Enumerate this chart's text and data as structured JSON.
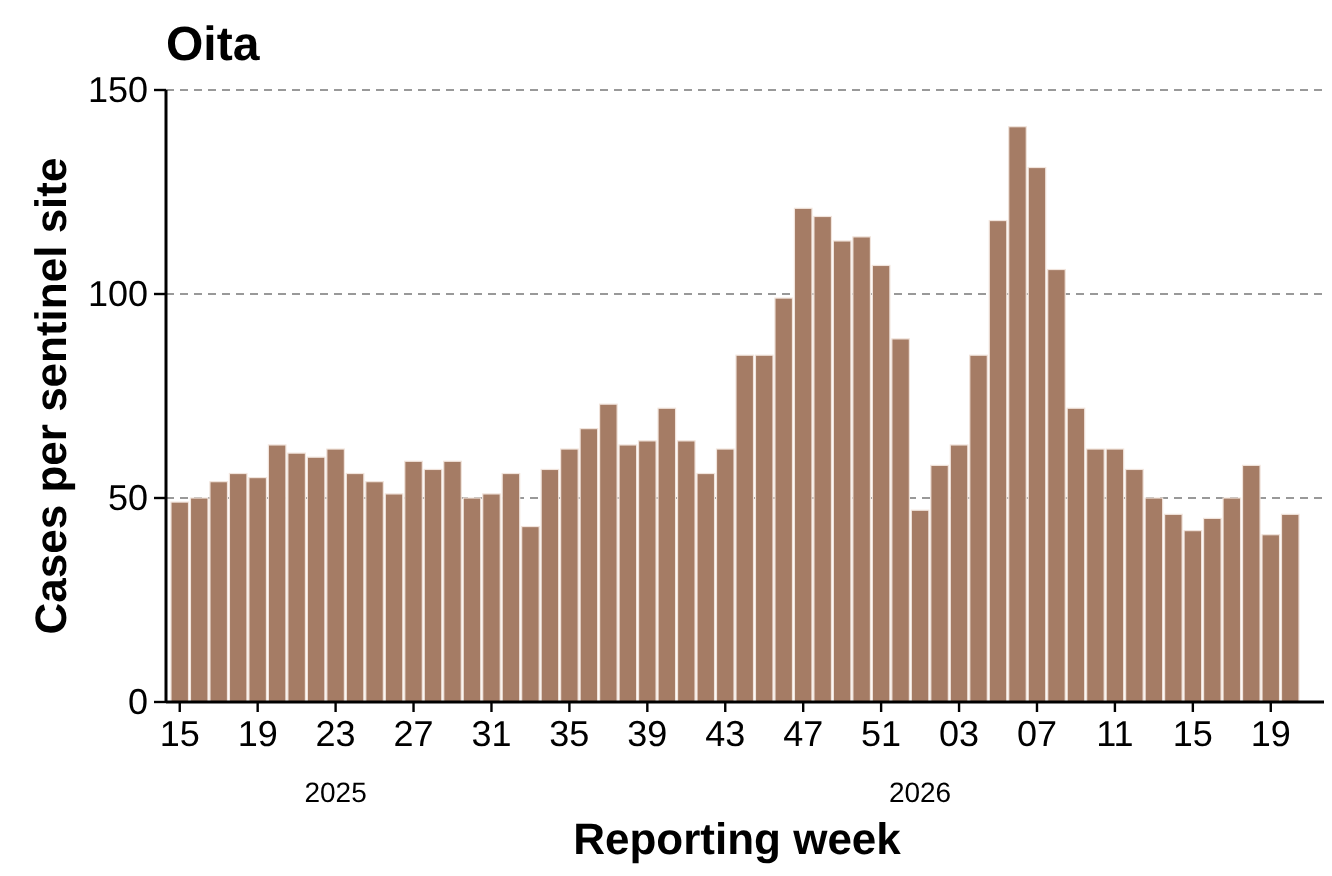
{
  "chart_data": {
    "type": "bar",
    "title": "Oita",
    "xlabel": "Reporting week",
    "ylabel": "Cases per sentinel site",
    "categories": [
      "15",
      null,
      null,
      null,
      "19",
      null,
      null,
      null,
      "23",
      null,
      null,
      null,
      "27",
      null,
      null,
      null,
      "31",
      null,
      null,
      null,
      "35",
      null,
      null,
      null,
      "39",
      null,
      null,
      null,
      "43",
      null,
      null,
      null,
      "47",
      null,
      null,
      null,
      "51",
      null,
      null,
      null,
      "03",
      null,
      null,
      null,
      "07",
      null,
      null,
      null,
      "11",
      null,
      null,
      null,
      "15",
      null,
      null,
      null,
      "19",
      null
    ],
    "values": [
      49,
      50,
      54,
      56,
      55,
      63,
      61,
      60,
      62,
      56,
      54,
      51,
      59,
      57,
      59,
      50,
      51,
      56,
      43,
      57,
      62,
      67,
      73,
      63,
      64,
      72,
      64,
      56,
      62,
      85,
      85,
      99,
      121,
      119,
      113,
      114,
      107,
      89,
      47,
      58,
      63,
      85,
      118,
      141,
      131,
      106,
      72,
      62,
      62,
      57,
      50,
      46,
      42,
      45,
      50,
      58,
      41,
      46
    ],
    "color": "#a57c65",
    "ylim": [
      0,
      150
    ],
    "yticks": [
      0,
      50,
      100,
      150
    ],
    "grid": "y",
    "annotations": [
      "2025",
      "2026"
    ]
  }
}
